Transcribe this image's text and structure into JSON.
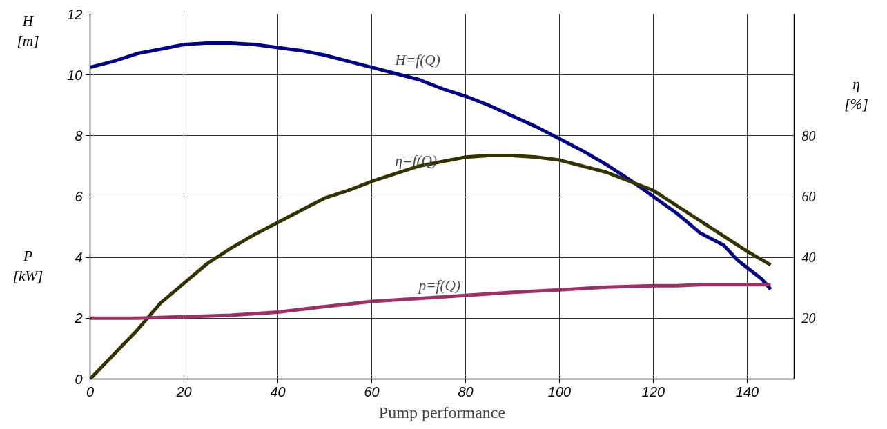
{
  "chart_data": {
    "type": "line",
    "title": "Pump performance",
    "ylabel": "H\n[m]",
    "y2label": "η\n[%]",
    "annotations": [
      "P\n[kW]"
    ],
    "xlim": [
      0,
      150
    ],
    "xticks": [
      0,
      20,
      40,
      60,
      80,
      100,
      120,
      140
    ],
    "ylim": [
      0,
      12
    ],
    "yticks": [
      0,
      2,
      4,
      6,
      8,
      10,
      12
    ],
    "y2lim": [
      0,
      120
    ],
    "y2ticks": [
      20,
      40,
      60,
      80
    ],
    "grid": true,
    "series": [
      {
        "name": "H=f(Q)",
        "color": "#000080",
        "x": [
          0,
          5,
          10,
          15,
          20,
          25,
          30,
          35,
          40,
          45,
          50,
          55,
          60,
          65,
          70,
          75,
          80,
          85,
          90,
          95,
          100,
          105,
          110,
          115,
          120,
          125,
          130,
          135,
          138,
          143,
          145
        ],
        "values": [
          10.25,
          10.45,
          10.7,
          10.85,
          11.0,
          11.05,
          11.05,
          11.0,
          10.9,
          10.8,
          10.65,
          10.45,
          10.25,
          10.05,
          9.85,
          9.55,
          9.3,
          9.0,
          8.65,
          8.3,
          7.9,
          7.5,
          7.05,
          6.55,
          6.0,
          5.45,
          4.8,
          4.4,
          3.9,
          3.3,
          2.95
        ]
      },
      {
        "name": "η=f(Q)",
        "color": "#333300",
        "axis": "y2",
        "x": [
          0,
          5,
          10,
          15,
          20,
          25,
          30,
          35,
          40,
          45,
          50,
          55,
          60,
          65,
          70,
          75,
          80,
          85,
          90,
          95,
          100,
          105,
          110,
          115,
          120,
          125,
          130,
          135,
          140,
          145
        ],
        "values": [
          0,
          8,
          16,
          25,
          31.5,
          38,
          43,
          47.5,
          51.5,
          55.5,
          59.5,
          62,
          65,
          67.5,
          70,
          71.5,
          73,
          73.5,
          73.5,
          73,
          72,
          70,
          68,
          65,
          62,
          57,
          52,
          47,
          42,
          37.5
        ]
      },
      {
        "name": "p=f(Q)",
        "color": "#993366",
        "x": [
          0,
          10,
          20,
          30,
          40,
          50,
          60,
          70,
          80,
          90,
          100,
          110,
          120,
          125,
          130,
          145
        ],
        "values": [
          2.0,
          2.0,
          2.05,
          2.1,
          2.2,
          2.38,
          2.55,
          2.65,
          2.75,
          2.85,
          2.93,
          3.02,
          3.07,
          3.07,
          3.1,
          3.1
        ]
      }
    ]
  }
}
